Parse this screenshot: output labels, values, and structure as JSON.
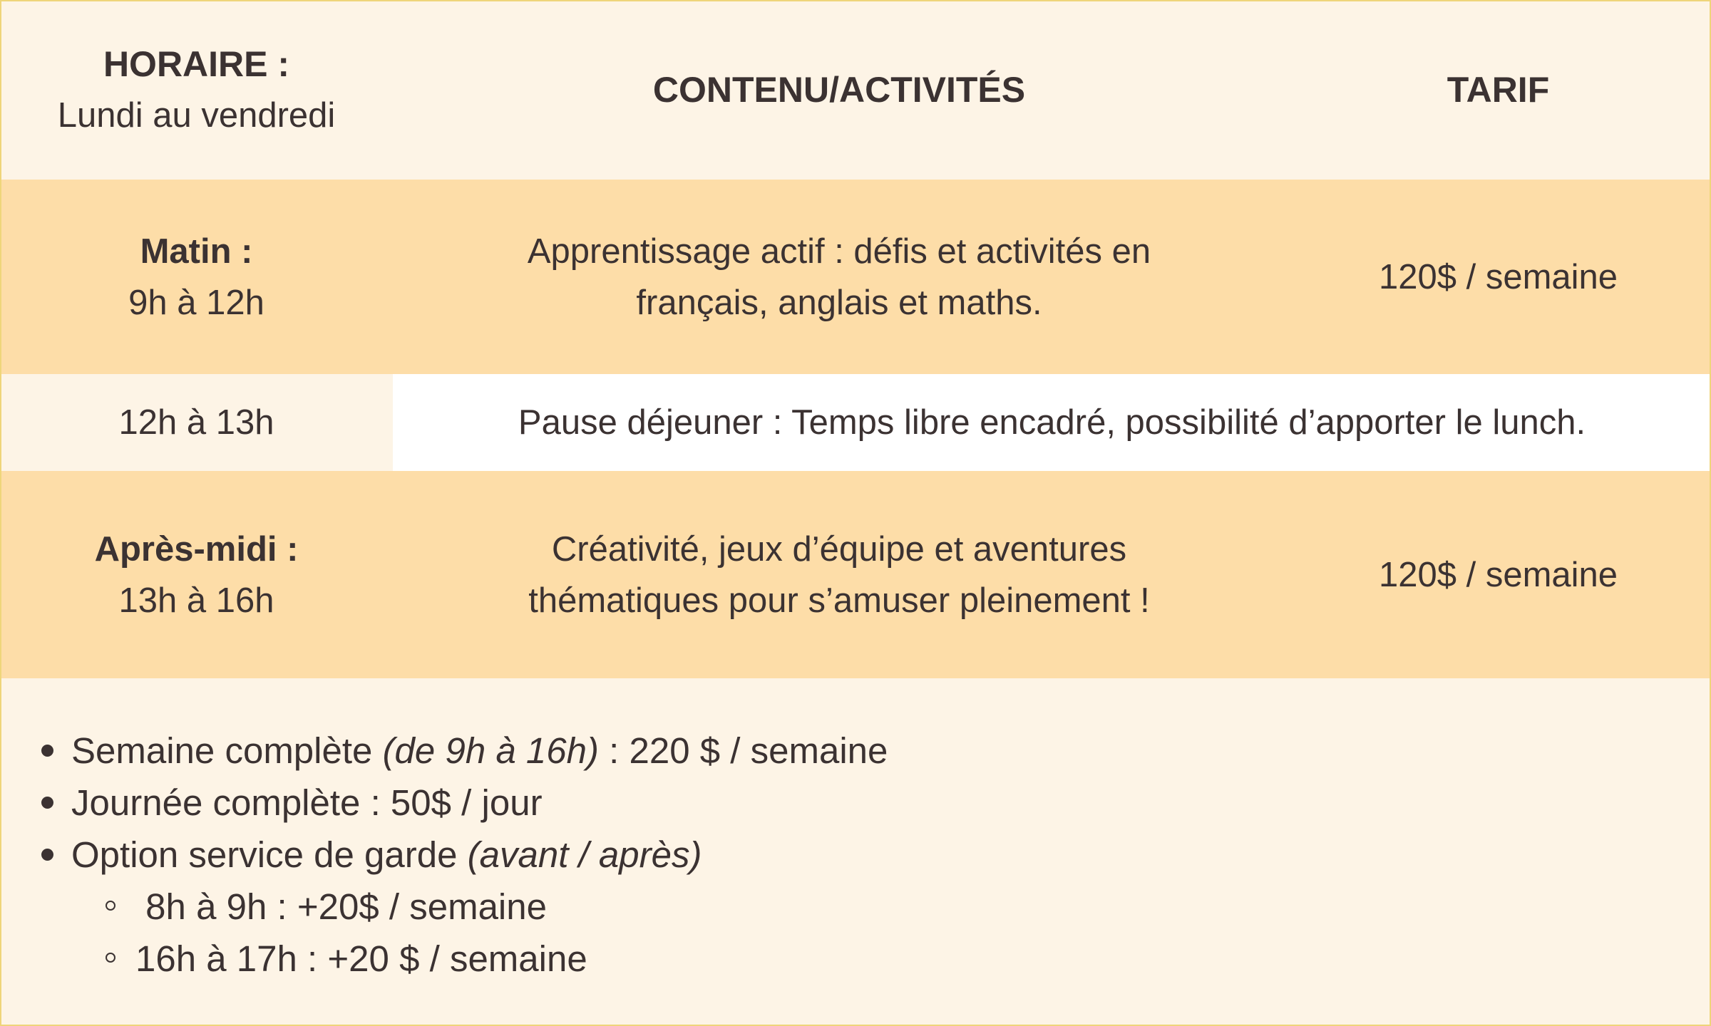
{
  "header": {
    "horaire_label": "HORAIRE :",
    "horaire_sub": "Lundi au vendredi",
    "contenu_label": "CONTENU/ACTIVITÉS",
    "tarif_label": "TARIF"
  },
  "rows": [
    {
      "time_label": "Matin :",
      "time_range": "9h à 12h",
      "content": "Apprentissage actif : défis et activités en français, anglais et maths.",
      "tarif": "120$ / semaine"
    },
    {
      "time_range": "12h à 13h",
      "content": "Pause déjeuner : Temps libre encadré, possibilité d’apporter le lunch."
    },
    {
      "time_label": "Après-midi :",
      "time_range": "13h à 16h",
      "content": "Créativité, jeux d’équipe et aventures thématiques pour s’amuser pleinement !",
      "tarif": "120$ / semaine"
    }
  ],
  "notes": [
    {
      "text": "Semaine complète ",
      "italic": "(de 9h à 16h)",
      "after": " : 220 $ / semaine"
    },
    {
      "text": "Journée complète : 50$ / jour"
    },
    {
      "text": "Option service de garde ",
      "italic": "(avant / après)"
    },
    {
      "text": " 8h à 9h : +20$ / semaine"
    },
    {
      "text": "16h à 17h : +20 $ / semaine"
    }
  ],
  "colors": {
    "cream": "#fdf4e6",
    "orange": "#fddda8",
    "border": "#f0d68a",
    "text": "#3b3232"
  }
}
